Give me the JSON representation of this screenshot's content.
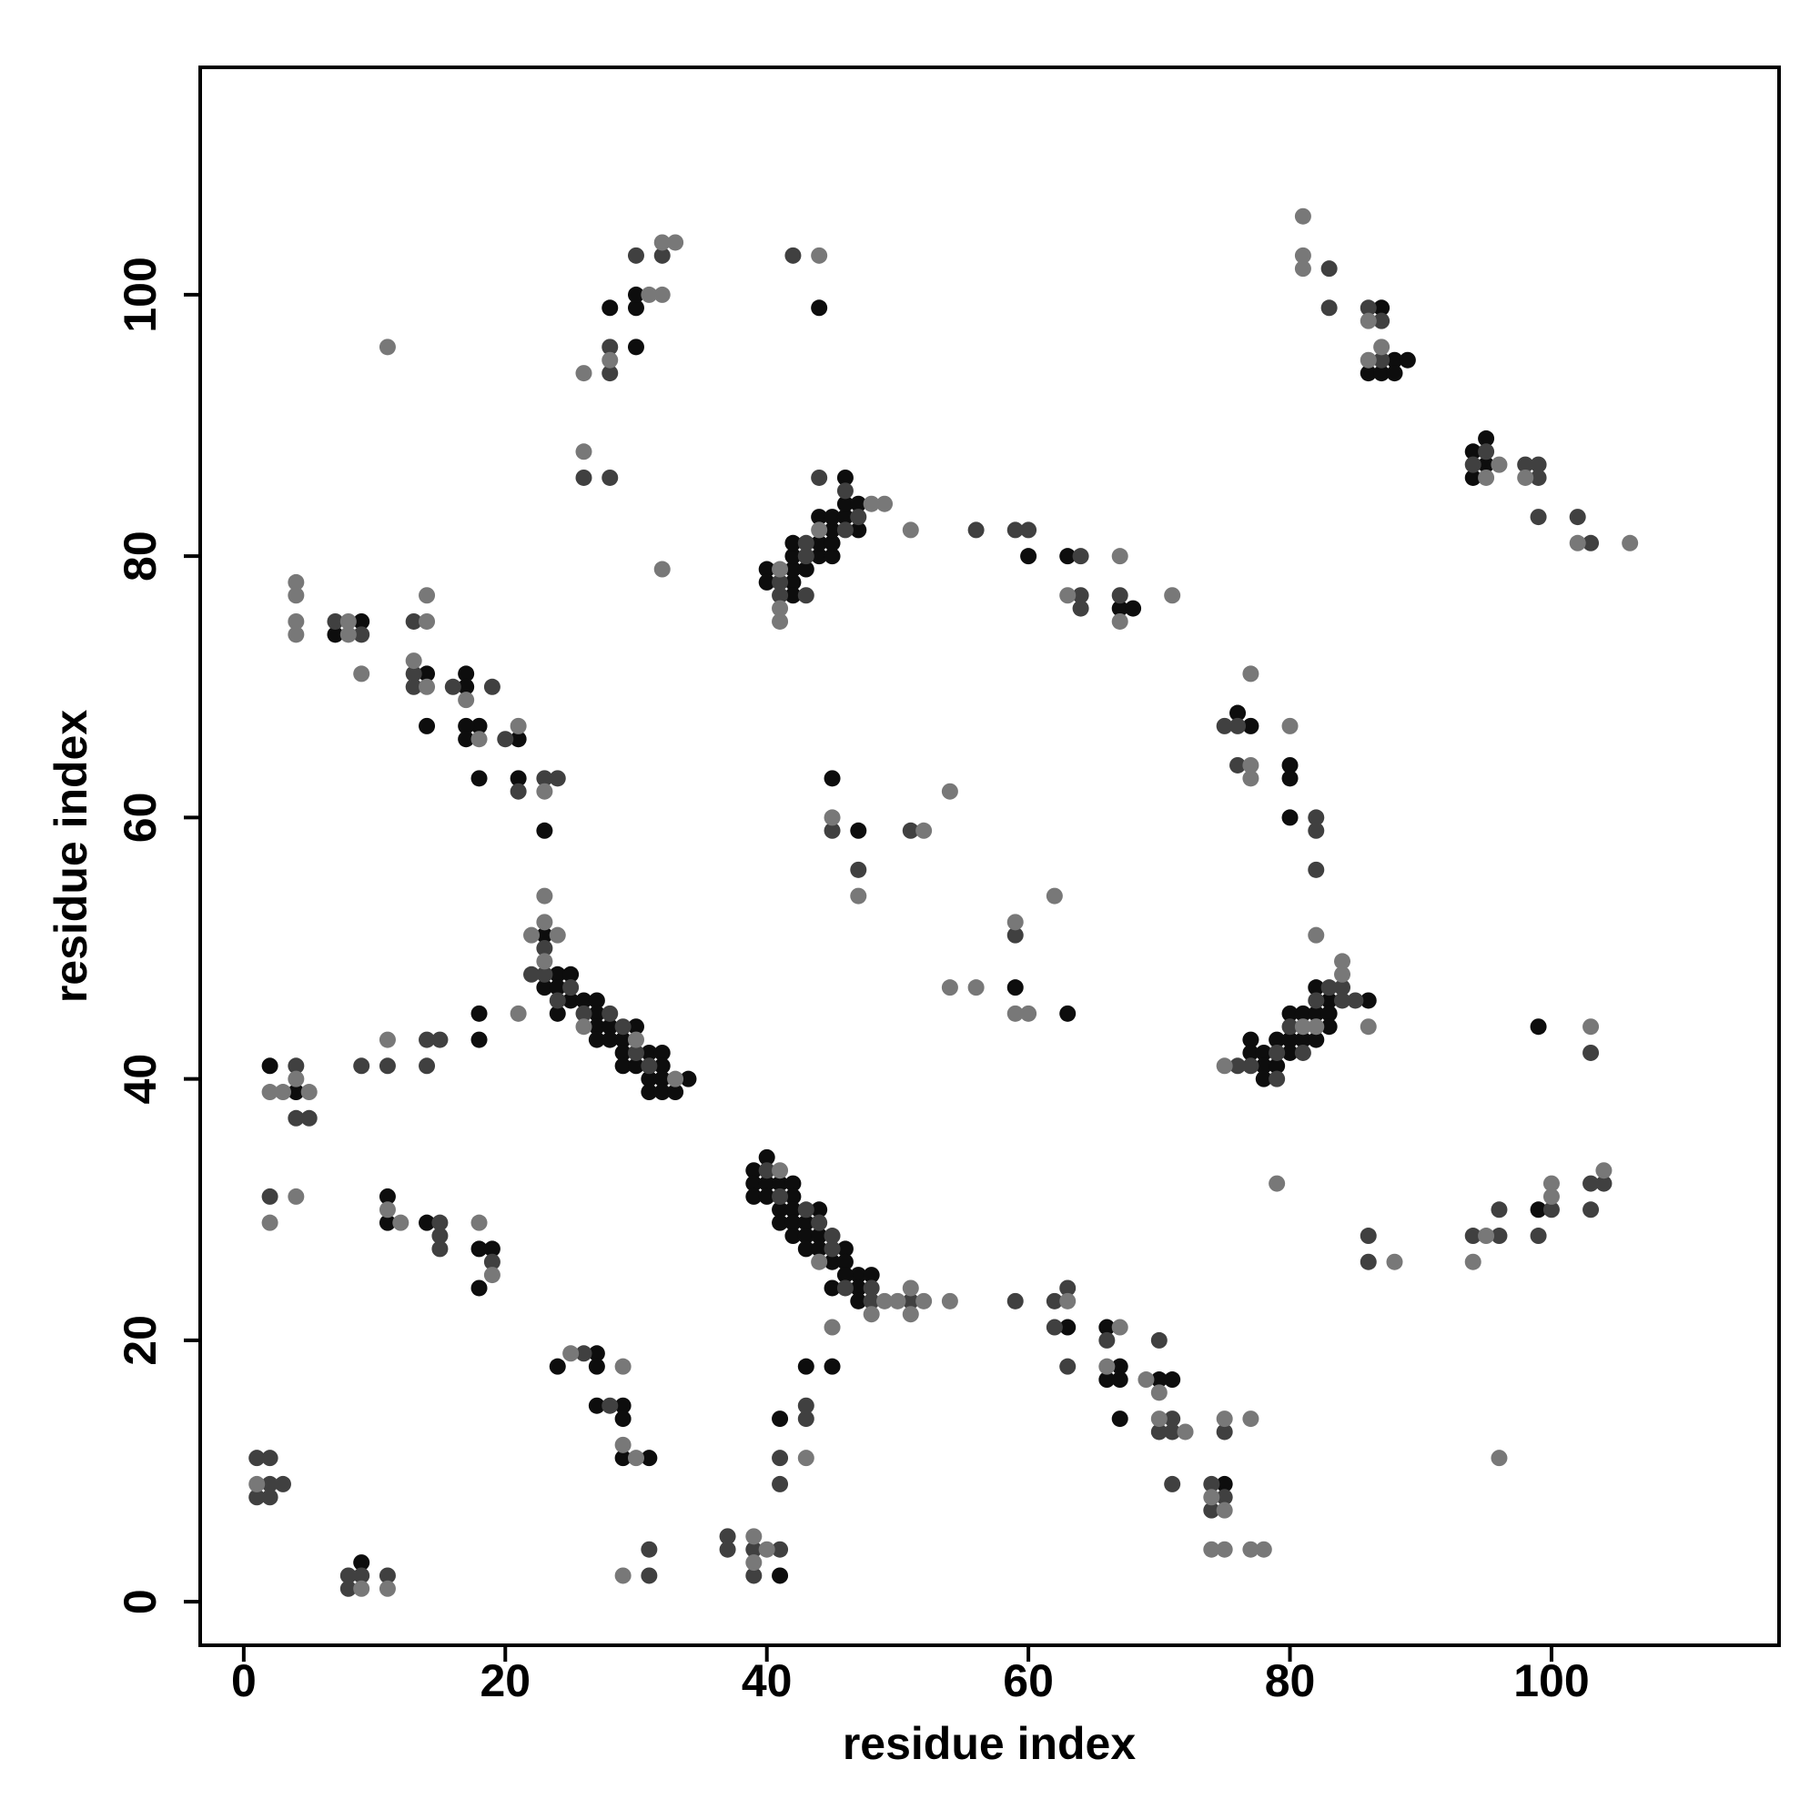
{
  "chart_data": {
    "type": "scatter",
    "x_label": "residue index",
    "y_label": "residue index",
    "xlim": [
      -3.33,
      117.4
    ],
    "ylim": [
      -3.33,
      117.4
    ],
    "xticks": [
      0,
      20,
      40,
      60,
      80,
      100
    ],
    "yticks": [
      0,
      20,
      40,
      60,
      80,
      100
    ],
    "series": [
      {
        "color": "#0d0d0d",
        "x": [
          9,
          2,
          4,
          18,
          18,
          11,
          11,
          14,
          18,
          19,
          18,
          24,
          27,
          27,
          27,
          29,
          29,
          29,
          31,
          41,
          41,
          43,
          45,
          39,
          40,
          39,
          40,
          41,
          42,
          39,
          40,
          42,
          41,
          42,
          44,
          41,
          42,
          43,
          42,
          43,
          44,
          43,
          44,
          46,
          45,
          46,
          47,
          48,
          46,
          45,
          47,
          47,
          63,
          66,
          67,
          66,
          67,
          67,
          70,
          71,
          75,
          99,
          23,
          24,
          25,
          23,
          24,
          25,
          26,
          27,
          24,
          27,
          27,
          28,
          30,
          27,
          28,
          29,
          29,
          31,
          32,
          29,
          30,
          32,
          31,
          32,
          34,
          31,
          32,
          33,
          23,
          21,
          21,
          18,
          17,
          17,
          17,
          17,
          18,
          14,
          14,
          9,
          7,
          30,
          28,
          30,
          30,
          44,
          40,
          40,
          42,
          42,
          42,
          43,
          42,
          44,
          45,
          42,
          44,
          45,
          45,
          47,
          44,
          45,
          46,
          46,
          47,
          46,
          60,
          63,
          67,
          68,
          45,
          47,
          59,
          63,
          77,
          77,
          78,
          78,
          78,
          79,
          79,
          80,
          80,
          80,
          81,
          81,
          82,
          82,
          82,
          83,
          83,
          83,
          86,
          76,
          77,
          80,
          80,
          80,
          99,
          87,
          88,
          89,
          86,
          87,
          88,
          94,
          95,
          95,
          94
        ],
        "y": [
          3,
          41,
          39,
          45,
          43,
          31,
          29,
          29,
          27,
          27,
          24,
          18,
          19,
          18,
          15,
          15,
          14,
          11,
          11,
          2,
          14,
          18,
          18,
          33,
          34,
          32,
          32,
          32,
          32,
          31,
          31,
          31,
          30,
          30,
          30,
          29,
          29,
          29,
          28,
          28,
          28,
          27,
          27,
          27,
          26,
          26,
          25,
          25,
          25,
          24,
          24,
          23,
          21,
          21,
          18,
          17,
          17,
          14,
          17,
          17,
          9,
          30,
          51,
          48,
          48,
          47,
          47,
          46,
          46,
          46,
          45,
          45,
          44,
          44,
          44,
          43,
          43,
          43,
          42,
          42,
          42,
          41,
          41,
          41,
          40,
          40,
          40,
          39,
          39,
          39,
          59,
          66,
          63,
          67,
          67,
          66,
          71,
          70,
          63,
          67,
          71,
          75,
          74,
          96,
          99,
          99,
          100,
          99,
          79,
          78,
          78,
          77,
          79,
          79,
          80,
          80,
          80,
          81,
          81,
          81,
          82,
          82,
          83,
          83,
          83,
          84,
          84,
          86,
          80,
          80,
          76,
          76,
          63,
          59,
          47,
          45,
          43,
          42,
          42,
          41,
          40,
          43,
          41,
          45,
          43,
          42,
          45,
          43,
          47,
          45,
          43,
          46,
          45,
          44,
          46,
          68,
          67,
          64,
          63,
          60,
          44,
          99,
          95,
          95,
          94,
          94,
          94,
          88,
          89,
          87,
          86
        ]
      },
      {
        "color": "#404040",
        "x": [
          1,
          2,
          2,
          3,
          1,
          2,
          8,
          9,
          8,
          11,
          2,
          4,
          4,
          5,
          9,
          11,
          14,
          15,
          14,
          15,
          15,
          15,
          19,
          26,
          28,
          31,
          31,
          37,
          37,
          39,
          39,
          41,
          41,
          41,
          43,
          43,
          40,
          41,
          43,
          44,
          45,
          45,
          46,
          48,
          48,
          51,
          59,
          62,
          63,
          62,
          63,
          66,
          70,
          71,
          70,
          71,
          71,
          74,
          75,
          74,
          75,
          86,
          86,
          94,
          96,
          96,
          99,
          100,
          103,
          104,
          103,
          23,
          22,
          23,
          25,
          24,
          26,
          28,
          29,
          30,
          31,
          23,
          24,
          21,
          20,
          19,
          16,
          13,
          13,
          13,
          7,
          9,
          28,
          28,
          30,
          32,
          26,
          28,
          42,
          41,
          41,
          43,
          43,
          43,
          46,
          47,
          46,
          44,
          56,
          59,
          60,
          64,
          64,
          64,
          67,
          45,
          47,
          51,
          59,
          76,
          77,
          79,
          79,
          80,
          81,
          82,
          83,
          84,
          84,
          85,
          75,
          76,
          76,
          82,
          82,
          82,
          103,
          83,
          83,
          86,
          87,
          87,
          95,
          94,
          98,
          99,
          99,
          99,
          102,
          103
        ],
        "y": [
          11,
          11,
          9,
          9,
          8,
          8,
          2,
          2,
          1,
          2,
          31,
          41,
          37,
          37,
          41,
          41,
          43,
          43,
          41,
          29,
          28,
          27,
          26,
          19,
          15,
          2,
          4,
          5,
          4,
          4,
          2,
          4,
          11,
          9,
          15,
          14,
          33,
          31,
          30,
          29,
          28,
          27,
          24,
          24,
          23,
          23,
          23,
          23,
          24,
          21,
          18,
          20,
          20,
          14,
          13,
          13,
          9,
          9,
          8,
          7,
          13,
          28,
          26,
          28,
          28,
          30,
          28,
          30,
          32,
          32,
          30,
          50,
          48,
          48,
          47,
          46,
          45,
          45,
          44,
          42,
          41,
          63,
          63,
          62,
          66,
          70,
          70,
          71,
          70,
          75,
          75,
          74,
          94,
          96,
          103,
          103,
          86,
          86,
          103,
          78,
          77,
          77,
          80,
          81,
          82,
          83,
          85,
          86,
          82,
          82,
          82,
          80,
          77,
          76,
          77,
          59,
          56,
          59,
          51,
          41,
          41,
          42,
          40,
          44,
          42,
          46,
          47,
          47,
          46,
          46,
          67,
          67,
          64,
          60,
          59,
          56,
          42,
          102,
          99,
          99,
          98,
          95,
          88,
          87,
          87,
          87,
          86,
          83,
          83,
          81
        ]
      },
      {
        "color": "#787878",
        "x": [
          1,
          9,
          11,
          2,
          4,
          2,
          3,
          4,
          5,
          11,
          21,
          11,
          12,
          18,
          19,
          25,
          29,
          29,
          30,
          29,
          39,
          39,
          40,
          43,
          45,
          41,
          44,
          49,
          48,
          50,
          51,
          51,
          52,
          54,
          63,
          67,
          66,
          69,
          70,
          70,
          72,
          74,
          75,
          75,
          77,
          74,
          75,
          77,
          78,
          79,
          88,
          94,
          95,
          96,
          100,
          100,
          104,
          22,
          24,
          23,
          23,
          23,
          26,
          30,
          33,
          23,
          21,
          18,
          17,
          13,
          14,
          14,
          14,
          8,
          8,
          9,
          4,
          4,
          4,
          4,
          11,
          26,
          28,
          31,
          32,
          32,
          33,
          26,
          32,
          44,
          41,
          41,
          41,
          44,
          48,
          49,
          51,
          67,
          63,
          67,
          71,
          45,
          47,
          52,
          54,
          54,
          56,
          59,
          59,
          60,
          62,
          75,
          81,
          82,
          84,
          84,
          86,
          82,
          77,
          77,
          77,
          80,
          103,
          81,
          81,
          81,
          86,
          87,
          86,
          96,
          95,
          98,
          102,
          106
        ],
        "y": [
          9,
          1,
          1,
          29,
          31,
          39,
          39,
          40,
          39,
          43,
          45,
          30,
          29,
          29,
          25,
          19,
          18,
          12,
          11,
          2,
          5,
          3,
          4,
          11,
          21,
          33,
          26,
          23,
          22,
          23,
          24,
          22,
          23,
          23,
          23,
          21,
          18,
          17,
          16,
          14,
          13,
          8,
          7,
          14,
          14,
          4,
          4,
          4,
          4,
          32,
          26,
          26,
          28,
          11,
          32,
          31,
          33,
          51,
          51,
          52,
          54,
          49,
          44,
          43,
          40,
          62,
          67,
          66,
          69,
          72,
          70,
          75,
          77,
          75,
          74,
          71,
          78,
          77,
          75,
          74,
          96,
          94,
          95,
          100,
          100,
          104,
          104,
          88,
          79,
          103,
          79,
          76,
          75,
          82,
          84,
          84,
          82,
          80,
          77,
          75,
          77,
          60,
          54,
          59,
          62,
          47,
          47,
          52,
          45,
          45,
          54,
          41,
          44,
          44,
          48,
          49,
          44,
          51,
          64,
          63,
          71,
          67,
          44,
          106,
          103,
          102,
          98,
          96,
          95,
          87,
          86,
          86,
          81,
          81
        ]
      }
    ]
  }
}
